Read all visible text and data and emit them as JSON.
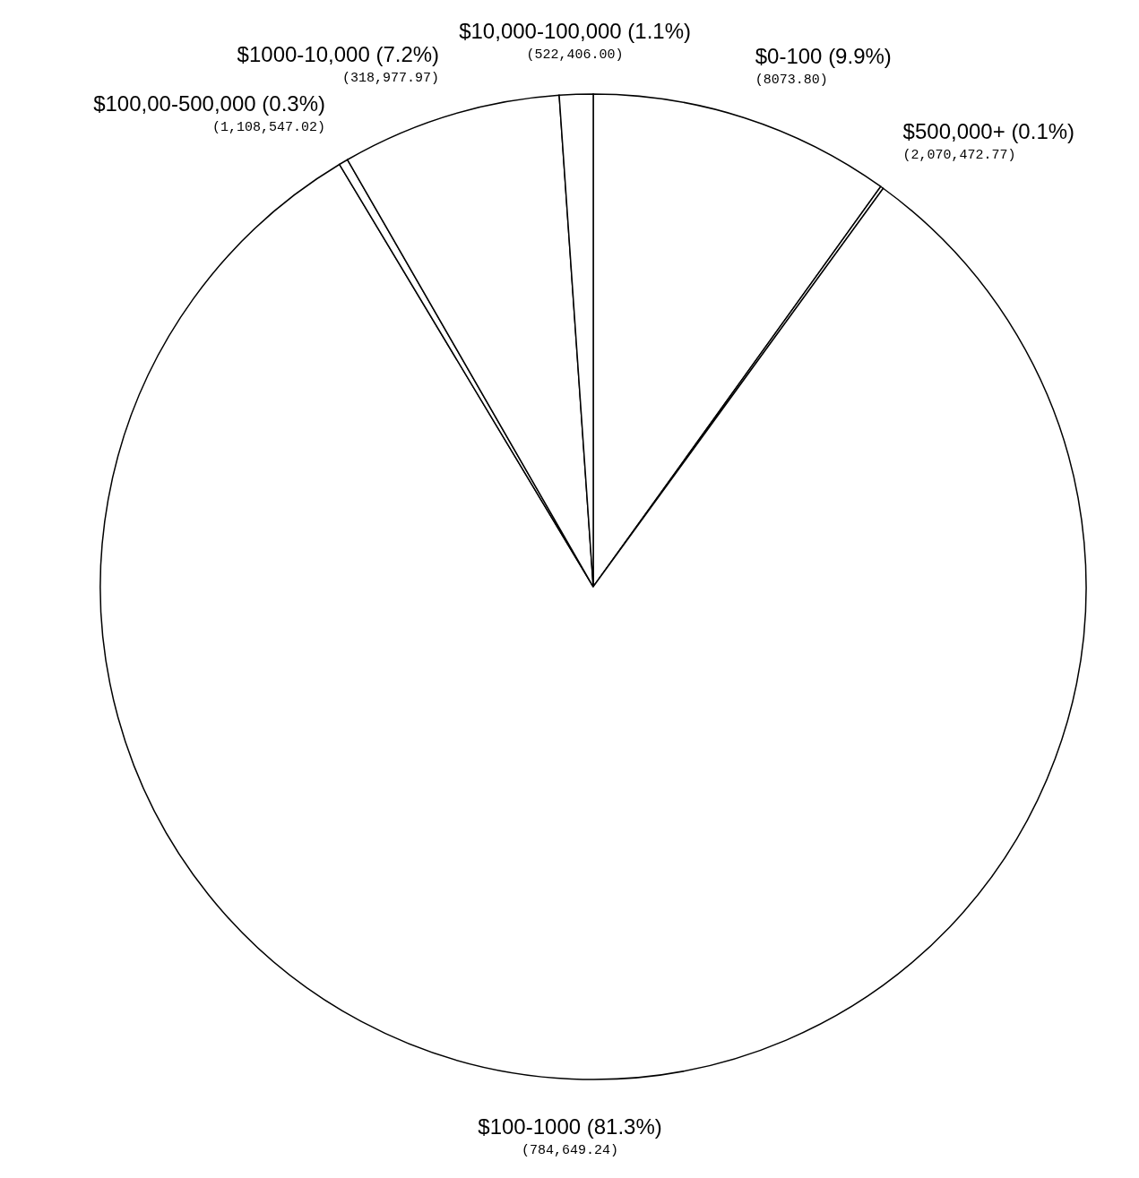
{
  "chart_data": {
    "type": "pie",
    "categories": [
      "$0-100 (9.9%)",
      "$500,000+ (0.1%)",
      "$100-1000 (81.3%)",
      "$100,00-500,000 (0.3%)",
      "$1000-10,000 (7.2%)",
      "$10,000-100,000 (1.1%)"
    ],
    "values": [
      9.9,
      0.1,
      81.3,
      0.3,
      7.2,
      1.1
    ],
    "annotations": [
      "(8073.80)",
      "(2,070,472.77)",
      "(784,649.24)",
      "(1,108,547.02)",
      "(318,977.97)",
      "(522,406.00)"
    ],
    "colors": [
      "#ffffff",
      "#ffffff",
      "#ffffff",
      "#ffffff",
      "#ffffff",
      "#ffffff"
    ]
  }
}
